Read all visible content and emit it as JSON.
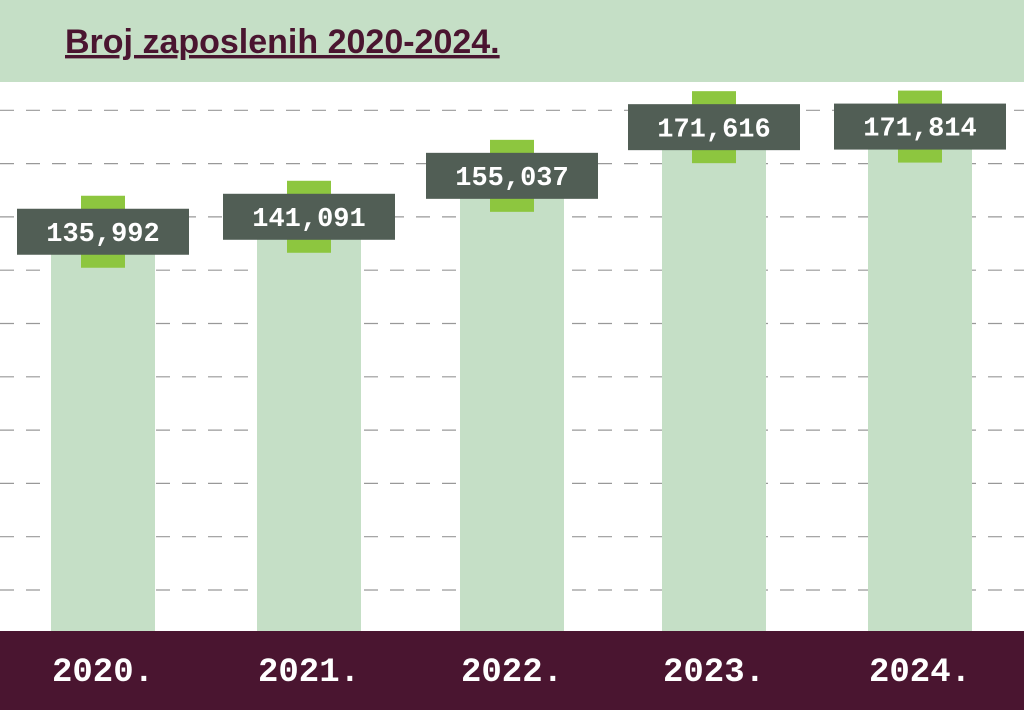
{
  "chart_data": {
    "type": "bar",
    "title": "Broj zaposlenih 2020-2024.",
    "categories": [
      "2020.",
      "2021.",
      "2022.",
      "2023.",
      "2024."
    ],
    "values": [
      135992,
      141091,
      155037,
      171616,
      171814
    ],
    "value_labels": [
      "135,992",
      "141,091",
      "155,037",
      "171,616",
      "171,814"
    ],
    "color": "#c5dfc6",
    "ylim": [
      0,
      187000
    ],
    "grid": true
  }
}
